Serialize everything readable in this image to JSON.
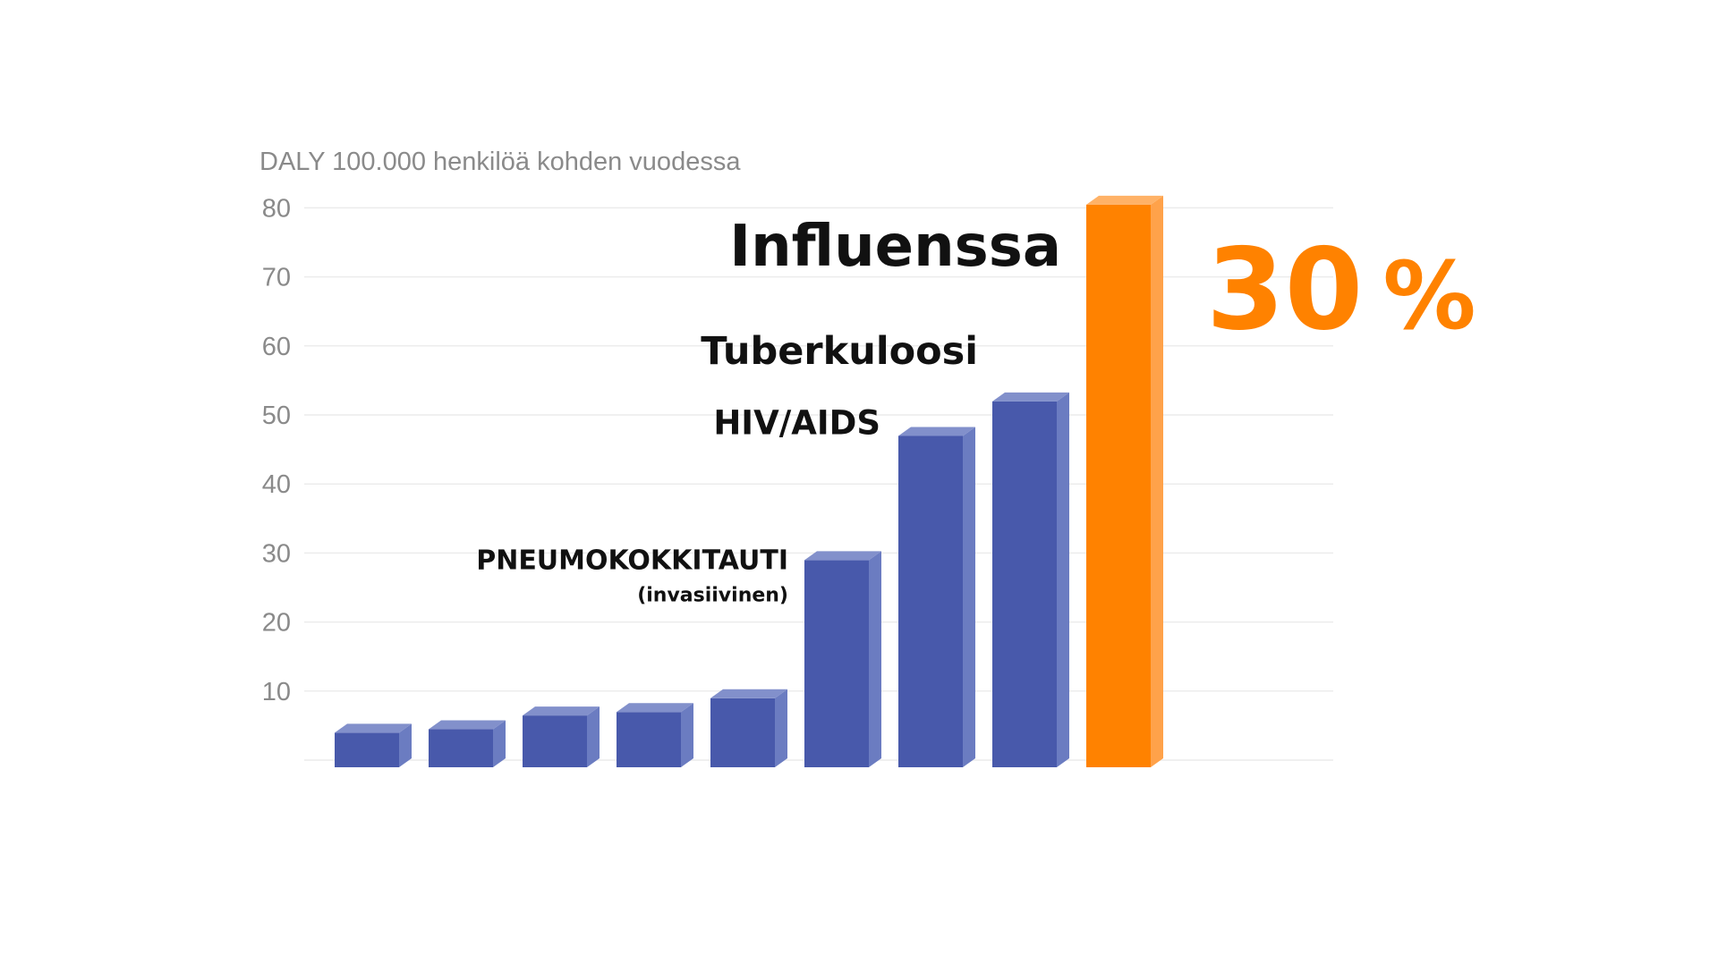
{
  "chart_data": {
    "type": "bar",
    "ylabel": "DALY 100.000 henkilöä kohden vuodessa",
    "xlabel": "",
    "ylim": [
      0,
      80
    ],
    "yticks": [
      "10",
      "20",
      "30",
      "40",
      "50",
      "60",
      "70",
      "80"
    ],
    "grid": true,
    "values": [
      5,
      5.5,
      7.5,
      8,
      10,
      30,
      48,
      53,
      81.5
    ],
    "highlight_index": 8,
    "annotations": [
      {
        "bar": 5,
        "text": "PNEUMOKOKKITAUTI",
        "subtext": "(invasiivinen)"
      },
      {
        "bar": 6,
        "text": "HIV/AIDS"
      },
      {
        "bar": 7,
        "text": "Tuberkuloosi"
      },
      {
        "bar": 8,
        "text": "Influenssa"
      }
    ],
    "callout": "30 %",
    "colors": {
      "bar": "#4859ab",
      "bar_side": "#6b7cc1",
      "bar_top": "#8290cb",
      "highlight": "#ff8200",
      "highlight_side": "#ffa24a",
      "highlight_top": "#ffb267",
      "grid": "#ececec",
      "tick_text": "#8a8a8a",
      "annotation_text": "#111111",
      "callout": "#ff8200"
    }
  }
}
